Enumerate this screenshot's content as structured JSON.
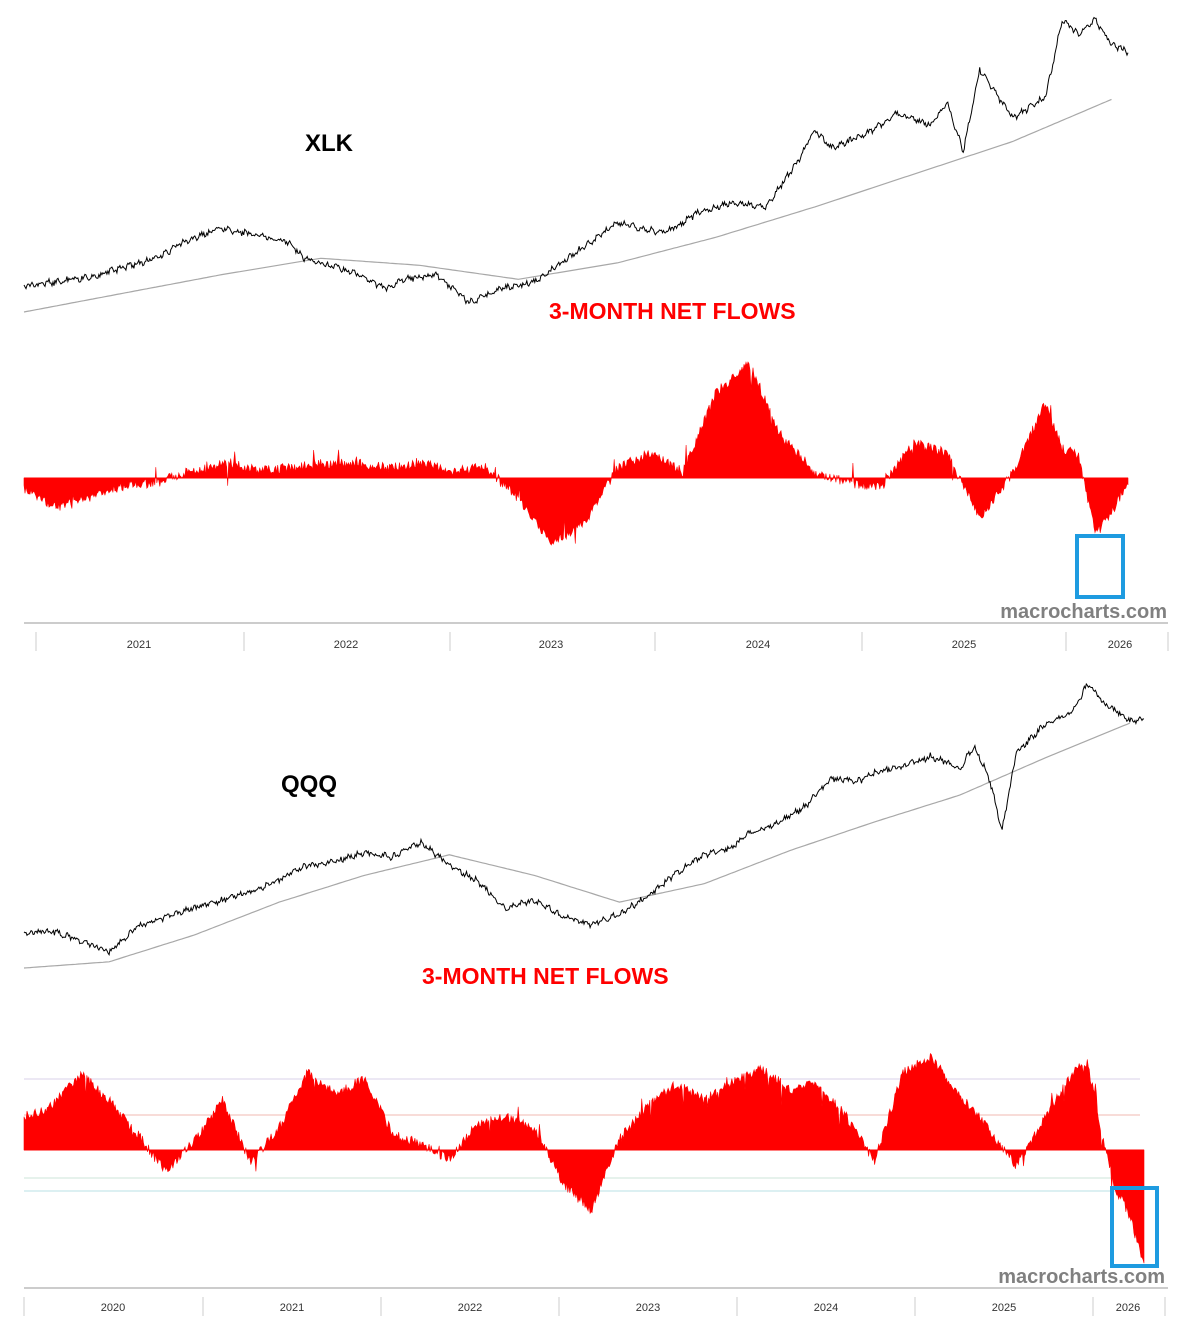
{
  "colors": {
    "price": "#000000",
    "moving_average": "#a8a8a8",
    "flows": "#ff0000",
    "highlight_box": "#1e9be0",
    "title_text": "#000000",
    "flows_label": "#ff0000",
    "watermark": "#808080",
    "axis": "#999999"
  },
  "chart_data": [
    {
      "type": "line",
      "ticker": "XLK",
      "panels": [
        {
          "kind": "price",
          "series": [
            "price",
            "moving_average"
          ],
          "y_scale": "log"
        },
        {
          "kind": "flows",
          "label": "3-MONTH NET FLOWS",
          "bar_type": "area",
          "color": "#ff0000"
        }
      ],
      "x_tick_labels": [
        "2021",
        "2022",
        "2023",
        "2024",
        "2025",
        "2026"
      ],
      "x_range": [
        "2020-07",
        "2026-02"
      ],
      "price": {
        "x": [
          "2020-07",
          "2020-09",
          "2020-11",
          "2021-01",
          "2021-03",
          "2021-05",
          "2021-07",
          "2021-09",
          "2021-11",
          "2021-12",
          "2022-01",
          "2022-03",
          "2022-05",
          "2022-06",
          "2022-08",
          "2022-10",
          "2022-12",
          "2023-02",
          "2023-04",
          "2023-05",
          "2023-07",
          "2023-09",
          "2023-10",
          "2023-12",
          "2024-02",
          "2024-04",
          "2024-06",
          "2024-07",
          "2024-08",
          "2024-10",
          "2024-12",
          "2025-02",
          "2025-03",
          "2025-04",
          "2025-05",
          "2025-07",
          "2025-09",
          "2025-10",
          "2025-11",
          "2025-12",
          "2026-01",
          "2026-02"
        ],
        "values": [
          21.0,
          23.0,
          25.0,
          29.0,
          33.0,
          41.0,
          46.0,
          43.0,
          40.0,
          33.0,
          31.0,
          27.0,
          20.0,
          24.0,
          26.0,
          14.0,
          20.0,
          23.0,
          33.0,
          38.0,
          48.0,
          45.0,
          44.0,
          53.0,
          57.0,
          55.0,
          75.0,
          88.0,
          80.0,
          86.0,
          95.0,
          90.0,
          100.0,
          79.0,
          114.0,
          93.0,
          102.0,
          135.0,
          129.0,
          135.0,
          125.0,
          121.0
        ]
      },
      "moving_average": {
        "x": [
          "2020-07",
          "2021-01",
          "2021-07",
          "2022-01",
          "2022-07",
          "2023-01",
          "2023-07",
          "2024-01",
          "2024-07",
          "2025-01",
          "2025-07",
          "2026-01"
        ],
        "values": [
          10.0,
          18.0,
          26.0,
          33.0,
          30.0,
          24.0,
          31.0,
          42.0,
          55.0,
          69.0,
          83.0,
          101.0
        ]
      },
      "flows": {
        "x": [
          "2020-07",
          "2020-09",
          "2020-11",
          "2021-01",
          "2021-03",
          "2021-05",
          "2021-07",
          "2021-09",
          "2021-11",
          "2022-01",
          "2022-03",
          "2022-05",
          "2022-07",
          "2022-09",
          "2022-11",
          "2023-01",
          "2023-03",
          "2023-05",
          "2023-07",
          "2023-09",
          "2023-11",
          "2024-01",
          "2024-03",
          "2024-05",
          "2024-07",
          "2024-09",
          "2024-11",
          "2025-01",
          "2025-03",
          "2025-05",
          "2025-07",
          "2025-09",
          "2025-10",
          "2025-11",
          "2025-12",
          "2026-01",
          "2026-02"
        ],
        "values": [
          -10,
          -30,
          -20,
          -8,
          -5,
          6,
          17,
          8,
          10,
          14,
          15,
          10,
          16,
          7,
          11,
          -20,
          -65,
          -46,
          10,
          25,
          6,
          85,
          115,
          40,
          6,
          -5,
          -10,
          35,
          25,
          -40,
          5,
          75,
          30,
          22,
          -55,
          -35,
          -2
        ]
      }
    },
    {
      "type": "line",
      "ticker": "QQQ",
      "panels": [
        {
          "kind": "price",
          "series": [
            "price",
            "moving_average"
          ],
          "y_scale": "log"
        },
        {
          "kind": "flows",
          "label": "3-MONTH NET FLOWS",
          "bar_type": "area",
          "color": "#ff0000"
        }
      ],
      "x_tick_labels": [
        "2020",
        "2021",
        "2022",
        "2023",
        "2024",
        "2025",
        "2026"
      ],
      "x_range": [
        "2019-07",
        "2026-02"
      ],
      "price": {
        "x": [
          "2019-07",
          "2019-09",
          "2019-11",
          "2020-01",
          "2020-03",
          "2020-05",
          "2020-07",
          "2020-09",
          "2020-11",
          "2021-01",
          "2021-03",
          "2021-05",
          "2021-07",
          "2021-09",
          "2021-11",
          "2022-01",
          "2022-03",
          "2022-05",
          "2022-07",
          "2022-09",
          "2022-11",
          "2023-01",
          "2023-03",
          "2023-05",
          "2023-07",
          "2023-09",
          "2023-10",
          "2023-12",
          "2024-02",
          "2024-04",
          "2024-06",
          "2024-07",
          "2024-09",
          "2024-11",
          "2025-01",
          "2025-02",
          "2025-03",
          "2025-04",
          "2025-05",
          "2025-07",
          "2025-09",
          "2025-10",
          "2025-11",
          "2025-12",
          "2026-01",
          "2026-02"
        ],
        "values": [
          20.0,
          21.0,
          16.0,
          11.0,
          23.0,
          28.0,
          32.0,
          36.0,
          40.0,
          46.0,
          53.0,
          55.0,
          59.0,
          57.0,
          64.0,
          53.0,
          45.0,
          32.0,
          36.0,
          28.0,
          24.0,
          29.0,
          38.0,
          49.0,
          58.0,
          62.0,
          68.0,
          73.0,
          81.0,
          95.0,
          94.0,
          98.0,
          101.0,
          106.0,
          100.0,
          111.0,
          97.0,
          70.0,
          108.0,
          121.0,
          128.0,
          141.0,
          133.0,
          128.0,
          123.0,
          124.0
        ]
      },
      "moving_average": {
        "x": [
          "2019-07",
          "2020-01",
          "2020-07",
          "2021-01",
          "2021-07",
          "2022-01",
          "2022-07",
          "2023-01",
          "2023-07",
          "2024-01",
          "2024-07",
          "2025-01",
          "2025-07",
          "2026-01"
        ],
        "values": [
          3.0,
          6.0,
          19.0,
          35.0,
          48.0,
          58.0,
          48.0,
          35.0,
          44.0,
          60.0,
          74.0,
          87.0,
          105.0,
          122.0
        ]
      },
      "flows": {
        "x": [
          "2019-07",
          "2019-09",
          "2019-11",
          "2020-01",
          "2020-03",
          "2020-05",
          "2020-07",
          "2020-09",
          "2020-11",
          "2021-01",
          "2021-03",
          "2021-05",
          "2021-07",
          "2021-09",
          "2021-11",
          "2022-01",
          "2022-03",
          "2022-05",
          "2022-07",
          "2022-09",
          "2022-11",
          "2023-01",
          "2023-03",
          "2023-05",
          "2023-07",
          "2023-09",
          "2023-11",
          "2024-01",
          "2024-03",
          "2024-05",
          "2024-07",
          "2024-09",
          "2024-11",
          "2025-01",
          "2025-03",
          "2025-05",
          "2025-07",
          "2025-09",
          "2025-10",
          "2025-11",
          "2025-12",
          "2026-01",
          "2026-02"
        ],
        "values": [
          30,
          40,
          70,
          45,
          15,
          -20,
          8,
          45,
          -12,
          20,
          70,
          50,
          65,
          15,
          5,
          -8,
          25,
          30,
          20,
          -30,
          -55,
          10,
          40,
          60,
          45,
          62,
          75,
          55,
          60,
          30,
          -10,
          70,
          85,
          50,
          20,
          -15,
          30,
          70,
          80,
          15,
          -35,
          -60,
          -105
        ]
      }
    }
  ],
  "charts": [
    {
      "ticker_label": "XLK",
      "flows_label": "3-MONTH NET FLOWS",
      "watermark": "macrocharts.com",
      "axis_labels": [
        "2021",
        "2022",
        "2023",
        "2024",
        "2025",
        "2026"
      ]
    },
    {
      "ticker_label": "QQQ",
      "flows_label": "3-MONTH NET FLOWS",
      "watermark": "macrocharts.com",
      "axis_labels": [
        "2020",
        "2021",
        "2022",
        "2023",
        "2024",
        "2025",
        "2026"
      ]
    }
  ]
}
